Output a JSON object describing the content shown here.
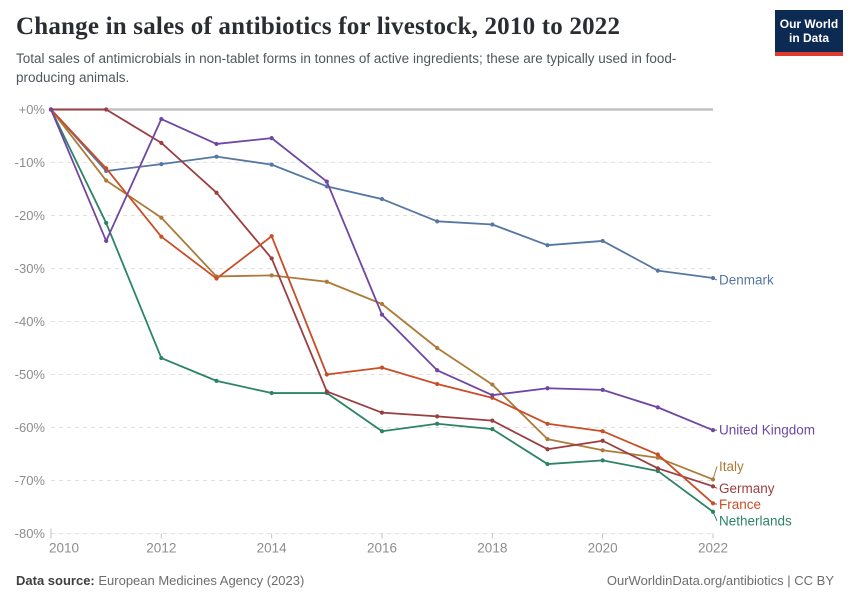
{
  "header": {
    "title": "Change in sales of antibiotics for livestock, 2010 to 2022",
    "subtitle": "Total sales of antimicrobials in non-tablet forms in tonnes of active ingredients; these are typically used in food-producing animals.",
    "logo": {
      "line1": "Our World",
      "line2": "in Data",
      "bg": "#0d2a52",
      "stripe": "#dc3b2d"
    }
  },
  "footer": {
    "source_label": "Data source:",
    "source_value": " European Medicines Agency (2023)",
    "rights": "OurWorldinData.org/antibiotics | CC BY"
  },
  "chart_data": {
    "type": "line",
    "title": "Change in sales of antibiotics for livestock, 2010 to 2022",
    "xlabel": "",
    "ylabel": "",
    "x": [
      2010,
      2011,
      2012,
      2013,
      2014,
      2015,
      2016,
      2017,
      2018,
      2019,
      2020,
      2021,
      2022
    ],
    "xticks": [
      2010,
      2012,
      2014,
      2016,
      2018,
      2020,
      2022
    ],
    "ylim": [
      -80,
      0
    ],
    "yticks": [
      {
        "v": 0,
        "label": "+0%"
      },
      {
        "v": -10,
        "label": "-10%"
      },
      {
        "v": -20,
        "label": "-20%"
      },
      {
        "v": -30,
        "label": "-30%"
      },
      {
        "v": -40,
        "label": "-40%"
      },
      {
        "v": -50,
        "label": "-50%"
      },
      {
        "v": -60,
        "label": "-60%"
      },
      {
        "v": -70,
        "label": "-70%"
      },
      {
        "v": -80,
        "label": "-80%"
      }
    ],
    "grid": "dashed-horizontal",
    "legend_position": "right-end-labels",
    "series": [
      {
        "name": "Denmark",
        "color": "#5677a3",
        "values": [
          0,
          -11.6,
          -10.3,
          -8.9,
          -10.4,
          -14.5,
          -16.9,
          -21.1,
          -21.7,
          -25.6,
          -24.8,
          -30.4,
          -31.8
        ],
        "label_offset_y": 2
      },
      {
        "name": "Netherlands",
        "color": "#2c8465",
        "values": [
          0,
          -21.4,
          -46.9,
          -51.2,
          -53.5,
          -53.5,
          -60.7,
          -59.3,
          -60.3,
          -66.9,
          -66.2,
          -68.2,
          -75.9
        ],
        "label_offset_y": 9
      },
      {
        "name": "Italy",
        "color": "#ad7b39",
        "values": [
          0,
          -13.4,
          -20.4,
          -31.5,
          -31.3,
          -32.5,
          -36.7,
          -45,
          -51.9,
          -62.2,
          -64.3,
          -65.7,
          -69.8
        ],
        "label_offset_y": -13
      },
      {
        "name": "Germany",
        "color": "#9b3e41",
        "values": [
          0,
          0,
          -6.3,
          -15.7,
          -28.1,
          -53.2,
          -57.2,
          -57.9,
          -58.7,
          -64.1,
          -62.5,
          -67.7,
          -71.1
        ],
        "label_offset_y": 2
      },
      {
        "name": "France",
        "color": "#c84e27",
        "values": [
          0,
          -11.1,
          -24,
          -31.9,
          -23.9,
          -50,
          -48.7,
          -51.8,
          -54.4,
          -59.3,
          -60.7,
          -65.1,
          -74.3
        ],
        "label_offset_y": 1
      },
      {
        "name": "United Kingdom",
        "color": "#6f46a1",
        "values": [
          0,
          -24.8,
          -1.8,
          -6.5,
          -5.4,
          -13.6,
          -38.7,
          -49.2,
          -53.9,
          -52.6,
          -52.9,
          -56.2,
          -60.5
        ],
        "label_offset_y": 0
      }
    ]
  }
}
